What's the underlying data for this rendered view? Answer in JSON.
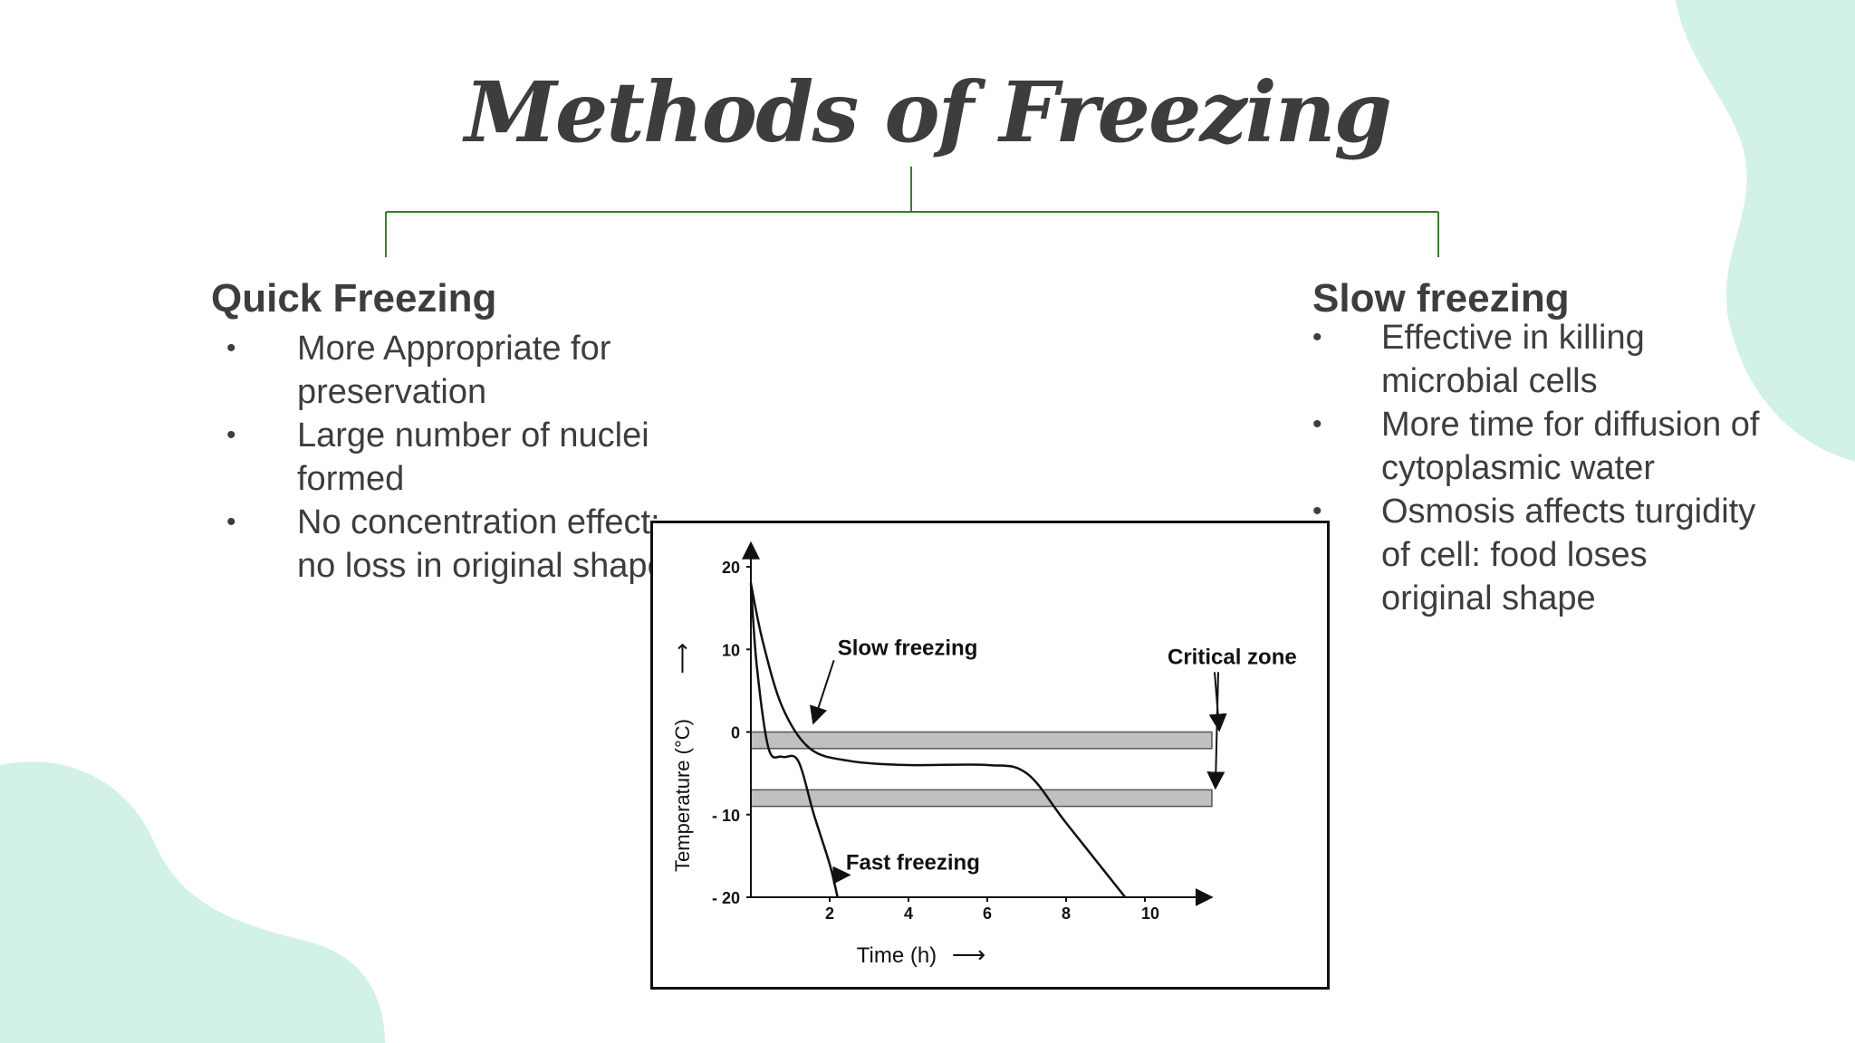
{
  "slide": {
    "title": "Methods of Freezing",
    "colors": {
      "text": "#3d3d3d",
      "connector": "#3a7d2c",
      "blob": "#d2f1e8"
    }
  },
  "left": {
    "heading": "Quick Freezing",
    "bullets": [
      "More Appropriate for preservation",
      "Large number of nuclei formed",
      "No concentration effect: no loss in original shape"
    ]
  },
  "right": {
    "heading": "Slow freezing",
    "bullets": [
      "Effective in killing microbial cells",
      "More time for diffusion of cytoplasmic water",
      "Osmosis affects turgidity of cell: food loses original shape"
    ]
  },
  "bullet_glyph": "•",
  "chart_data": {
    "type": "line",
    "xlabel": "Time (h)",
    "ylabel": "Temperature (°C)",
    "xlim": [
      0,
      10.5
    ],
    "ylim": [
      -20,
      22
    ],
    "x_ticks": [
      2,
      4,
      6,
      8,
      10
    ],
    "y_ticks": [
      20,
      10,
      0,
      -10,
      -20
    ],
    "y_tick_labels": [
      "20",
      "10",
      "0",
      "- 10",
      "- 20"
    ],
    "x_tick_labels": [
      "2",
      "4",
      "6",
      "8",
      "10"
    ],
    "axis_arrow_x": "⟶",
    "axis_arrow_y": "⟶",
    "zones": [
      {
        "y_top": 0,
        "y_bottom": -2,
        "x_end": 11.7
      },
      {
        "y_top": -7,
        "y_bottom": -9,
        "x_end": 11.7
      }
    ],
    "series": [
      {
        "points": [
          [
            0,
            18
          ],
          [
            0.3,
            11
          ],
          [
            0.8,
            3
          ],
          [
            1.5,
            -2
          ],
          [
            2.5,
            -3.5
          ],
          [
            4,
            -4
          ],
          [
            6,
            -4
          ],
          [
            7,
            -5
          ],
          [
            8,
            -11
          ],
          [
            9.5,
            -20
          ]
        ]
      },
      {
        "points": [
          [
            0,
            18
          ],
          [
            0.15,
            8
          ],
          [
            0.45,
            -2
          ],
          [
            0.8,
            -3
          ],
          [
            1.2,
            -3.5
          ],
          [
            1.6,
            -10
          ],
          [
            2,
            -16
          ],
          [
            2.2,
            -20
          ]
        ]
      }
    ],
    "annotations": [
      {
        "text": "Slow freezing",
        "x": 2.2,
        "y": 10
      },
      {
        "text": "Fast freezing",
        "x": 3.1,
        "y": -16
      },
      {
        "text": "Critical zone",
        "x": 11.7,
        "y": 9
      }
    ]
  }
}
